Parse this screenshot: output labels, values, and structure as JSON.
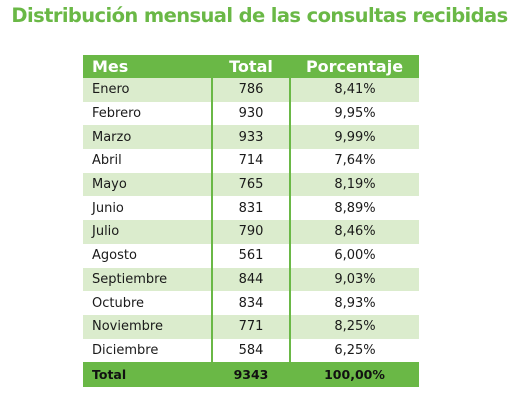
{
  "title": "Distribución mensual de las consultas recibidas",
  "table": {
    "headers": {
      "month": "Mes",
      "total": "Total",
      "percentage": "Porcentaje"
    },
    "rows": [
      {
        "month": "Enero",
        "total": "786",
        "percentage": "8,41%"
      },
      {
        "month": "Febrero",
        "total": "930",
        "percentage": "9,95%"
      },
      {
        "month": "Marzo",
        "total": "933",
        "percentage": "9,99%"
      },
      {
        "month": "Abril",
        "total": "714",
        "percentage": "7,64%"
      },
      {
        "month": "Mayo",
        "total": "765",
        "percentage": "8,19%"
      },
      {
        "month": "Junio",
        "total": "831",
        "percentage": "8,89%"
      },
      {
        "month": "Julio",
        "total": "790",
        "percentage": "8,46%"
      },
      {
        "month": "Agosto",
        "total": "561",
        "percentage": "6,00%"
      },
      {
        "month": "Septiembre",
        "total": "844",
        "percentage": "9,03%"
      },
      {
        "month": "Octubre",
        "total": "834",
        "percentage": "8,93%"
      },
      {
        "month": "Noviembre",
        "total": "771",
        "percentage": "8,25%"
      },
      {
        "month": "Diciembre",
        "total": "584",
        "percentage": "6,25%"
      }
    ],
    "footer": {
      "label": "Total",
      "total": "9343",
      "percentage": "100,00%"
    }
  },
  "colors": {
    "accent": "#6ab846",
    "row_alt": "#dbeccd",
    "row_plain": "#ffffff"
  }
}
